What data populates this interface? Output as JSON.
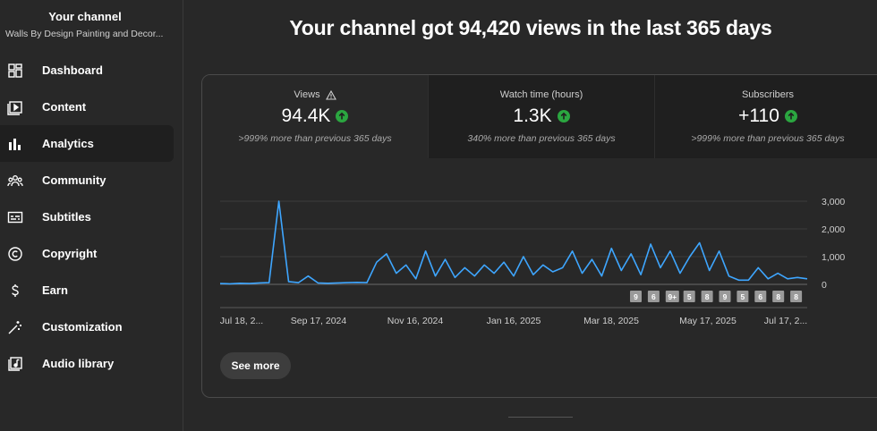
{
  "sidebar": {
    "title": "Your channel",
    "channel_name": "Walls By Design Painting and Decor...",
    "items": [
      {
        "label": "Dashboard",
        "icon": "dashboard-icon"
      },
      {
        "label": "Content",
        "icon": "content-icon"
      },
      {
        "label": "Analytics",
        "icon": "analytics-icon",
        "active": true
      },
      {
        "label": "Community",
        "icon": "community-icon"
      },
      {
        "label": "Subtitles",
        "icon": "subtitles-icon"
      },
      {
        "label": "Copyright",
        "icon": "copyright-icon"
      },
      {
        "label": "Earn",
        "icon": "earn-icon"
      },
      {
        "label": "Customization",
        "icon": "customization-icon"
      },
      {
        "label": "Audio library",
        "icon": "audio-library-icon"
      }
    ]
  },
  "headline": "Your channel got 94,420 views in the last 365 days",
  "metrics": [
    {
      "title": "Views",
      "value": "94.4K",
      "comparison": ">999% more than previous 365 days",
      "warning": true
    },
    {
      "title": "Watch time (hours)",
      "value": "1.3K",
      "comparison": "340% more than previous 365 days"
    },
    {
      "title": "Subscribers",
      "value": "+110",
      "comparison": ">999% more than previous 365 days"
    }
  ],
  "colors": {
    "line": "#3ea6ff",
    "positive": "#2ba640",
    "background": "#282828"
  },
  "chart_data": {
    "type": "line",
    "ylim": [
      0,
      3000
    ],
    "y_ticks": [
      "3,000",
      "2,000",
      "1,000",
      "0"
    ],
    "x_tick_labels": [
      "Jul 18, 2...",
      "Sep 17, 2024",
      "Nov 16, 2024",
      "Jan 16, 2025",
      "Mar 18, 2025",
      "May 17, 2025",
      "Jul 17, 2..."
    ],
    "markers": [
      "9",
      "6",
      "9+",
      "5",
      "8",
      "9",
      "5",
      "6",
      "8",
      "8"
    ],
    "x": [
      "Jul 18",
      "Aug 1",
      "Aug 15",
      "Aug 29",
      "Sep 12",
      "Sep 19",
      "Sep 21",
      "Sep 23",
      "Oct 7",
      "Oct 14",
      "Oct 21",
      "Nov 4",
      "Nov 18",
      "Dec 2",
      "Dec 16",
      "Dec 30",
      "Jan 6",
      "Jan 10",
      "Jan 13",
      "Jan 18",
      "Jan 22",
      "Jan 27",
      "Feb 1",
      "Feb 6",
      "Feb 10",
      "Feb 15",
      "Feb 20",
      "Feb 25",
      "Mar 2",
      "Mar 6",
      "Mar 11",
      "Mar 15",
      "Mar 19",
      "Mar 23",
      "Mar 28",
      "Apr 1",
      "Apr 6",
      "Apr 10",
      "Apr 15",
      "Apr 19",
      "Apr 24",
      "Apr 28",
      "May 3",
      "May 8",
      "May 12",
      "May 17",
      "May 21",
      "May 25",
      "May 28",
      "Jun 1",
      "Jun 5",
      "Jun 9",
      "Jun 13",
      "Jun 17",
      "Jun 21",
      "Jun 26",
      "Jul 1",
      "Jul 5",
      "Jul 9",
      "Jul 13",
      "Jul 17"
    ],
    "values": [
      30,
      20,
      40,
      30,
      50,
      60,
      3000,
      100,
      60,
      300,
      50,
      40,
      50,
      60,
      70,
      60,
      800,
      1100,
      400,
      700,
      200,
      1200,
      300,
      900,
      250,
      600,
      300,
      700,
      400,
      800,
      300,
      1000,
      350,
      700,
      450,
      600,
      1200,
      400,
      900,
      300,
      1300,
      500,
      1100,
      350,
      1450,
      600,
      1200,
      400,
      1000,
      1500,
      500,
      1200,
      300,
      150,
      150,
      600,
      200,
      400,
      200,
      250,
      200
    ]
  },
  "see_more_label": "See more"
}
